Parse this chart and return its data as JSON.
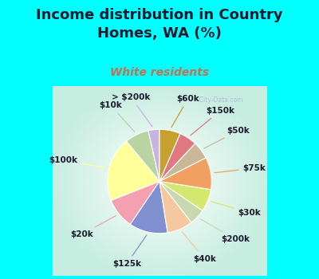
{
  "title": "Income distribution in Country\nHomes, WA (%)",
  "subtitle": "White residents",
  "background_color": "#00FFFF",
  "title_color": "#1a1a2e",
  "subtitle_color": "#c87050",
  "watermark": "  City-Data.com",
  "labels": [
    "> $200k",
    "$10k",
    "$100k",
    "$20k",
    "$125k",
    "$40k",
    "$200k",
    "$30k",
    "$75k",
    "$50k",
    "$150k",
    "$60k"
  ],
  "values": [
    3.5,
    7.5,
    20.0,
    9.5,
    12.0,
    8.0,
    5.0,
    7.0,
    10.0,
    5.5,
    5.5,
    6.5
  ],
  "colors": [
    "#c8b4e0",
    "#b8d4a0",
    "#ffff99",
    "#f4a0b0",
    "#8090d0",
    "#f5c8a0",
    "#c8d8b0",
    "#d4e870",
    "#f0a060",
    "#c8b898",
    "#e07880",
    "#c8a030"
  ],
  "label_fontsize": 7.5,
  "title_fontsize": 13,
  "subtitle_fontsize": 10
}
